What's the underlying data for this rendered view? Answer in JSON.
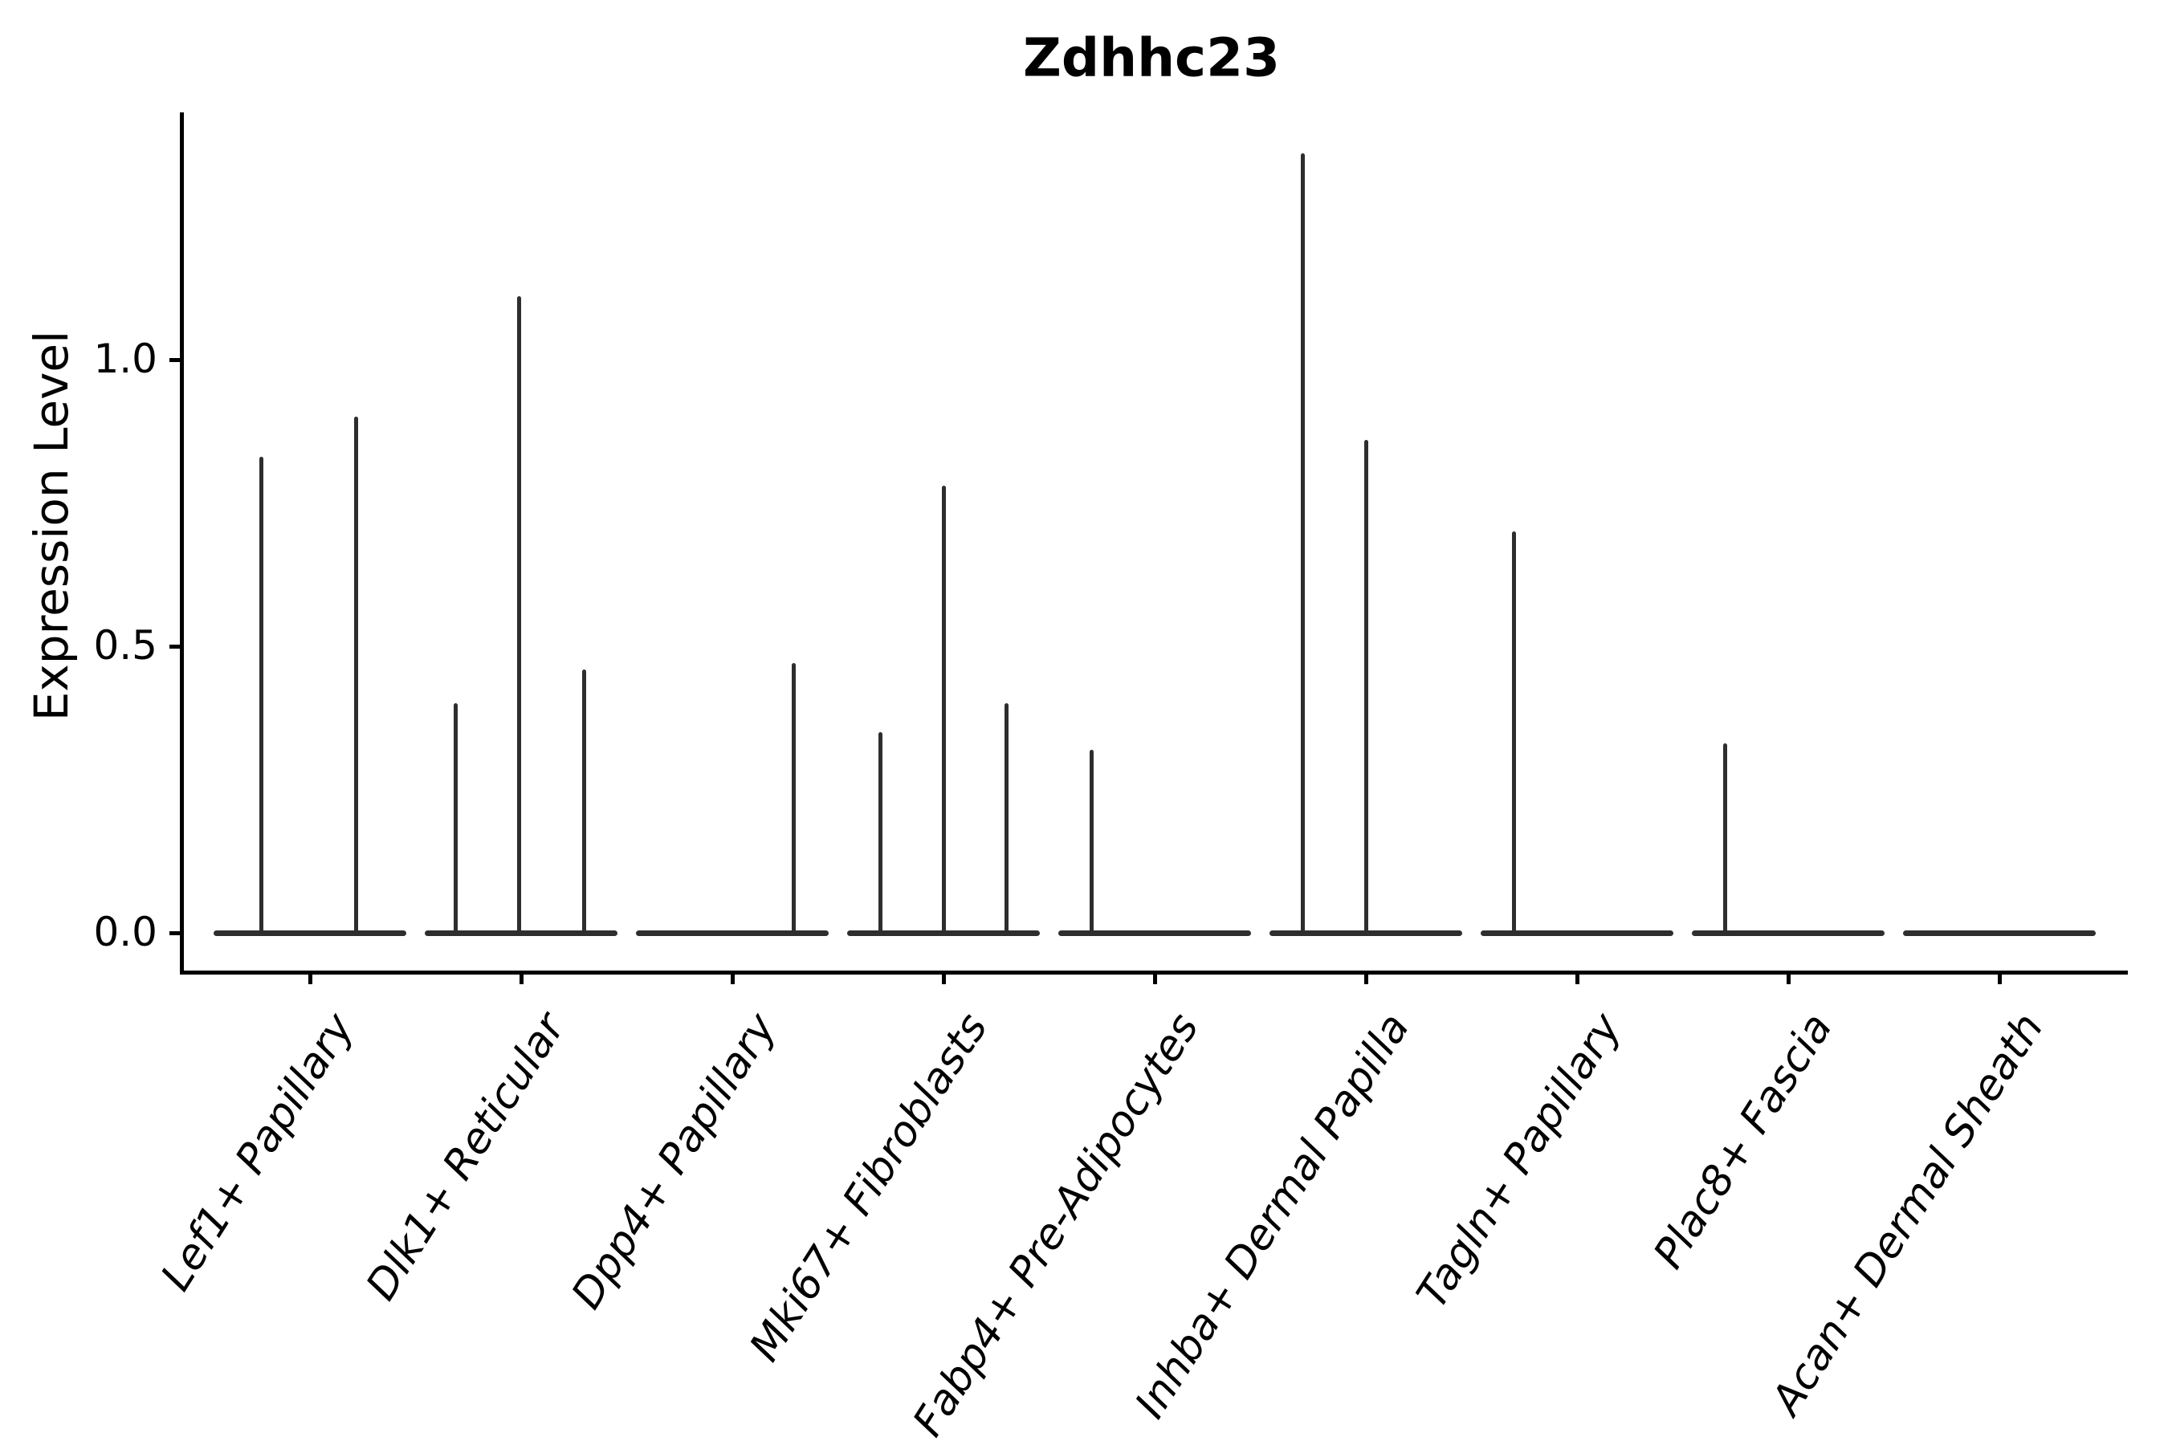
{
  "title": "Zdhhc23",
  "y_axis": {
    "label": "Expression Level",
    "tick_labels": [
      "0.0",
      "0.5",
      "1.0"
    ]
  },
  "x_axis": {
    "tick_labels": [
      "Lef1+ Papillary",
      "Dlk1+ Reticular",
      "Dpp4+ Papillary",
      "Mki67+ Fibroblasts",
      "Fabp4+ Pre-Adipocytes",
      "Inhba+ Dermal Papilla",
      "Tagln+ Papillary",
      "Plac8+ Fascia",
      "Acan+ Dermal Sheath"
    ]
  },
  "colors": {
    "violin": "#2e2e2e",
    "axis": "#000000",
    "text": "#000000",
    "background": "#ffffff"
  },
  "chart_data": {
    "type": "violin",
    "title": "Zdhhc23",
    "xlabel": "",
    "ylabel": "Expression Level",
    "ylim": [
      0,
      1.43
    ],
    "yticks": [
      0.0,
      0.5,
      1.0
    ],
    "grid": false,
    "legend_position": "none",
    "categories": [
      "Lef1+ Papillary",
      "Dlk1+ Reticular",
      "Dpp4+ Papillary",
      "Mki67+ Fibroblasts",
      "Fabp4+ Pre-Adipocytes",
      "Inhba+ Dermal Papilla",
      "Tagln+ Papillary",
      "Plac8+ Fascia",
      "Acan+ Dermal Sheath"
    ],
    "series": [
      {
        "category": "Lef1+ Papillary",
        "bulk_at_zero": true,
        "spikes": [
          {
            "value": 0.83,
            "offset_frac": -0.23
          },
          {
            "value": 0.9,
            "offset_frac": 0.22
          }
        ]
      },
      {
        "category": "Dlk1+ Reticular",
        "bulk_at_zero": true,
        "spikes": [
          {
            "value": 0.4,
            "offset_frac": -0.31
          },
          {
            "value": 1.11,
            "offset_frac": -0.01
          },
          {
            "value": 0.46,
            "offset_frac": 0.3
          }
        ]
      },
      {
        "category": "Dpp4+ Papillary",
        "bulk_at_zero": true,
        "spikes": [
          {
            "value": 0.47,
            "offset_frac": 0.29
          }
        ]
      },
      {
        "category": "Mki67+ Fibroblasts",
        "bulk_at_zero": true,
        "spikes": [
          {
            "value": 0.35,
            "offset_frac": -0.3
          },
          {
            "value": 0.78,
            "offset_frac": 0.0
          },
          {
            "value": 0.4,
            "offset_frac": 0.3
          }
        ]
      },
      {
        "category": "Fabp4+ Pre-Adipocytes",
        "bulk_at_zero": true,
        "spikes": [
          {
            "value": 0.32,
            "offset_frac": -0.3
          }
        ]
      },
      {
        "category": "Inhba+ Dermal Papilla",
        "bulk_at_zero": true,
        "spikes": [
          {
            "value": 1.36,
            "offset_frac": -0.3
          },
          {
            "value": 0.86,
            "offset_frac": 0.0
          }
        ]
      },
      {
        "category": "Tagln+ Papillary",
        "bulk_at_zero": true,
        "spikes": [
          {
            "value": 0.7,
            "offset_frac": -0.3
          }
        ]
      },
      {
        "category": "Plac8+ Fascia",
        "bulk_at_zero": true,
        "spikes": [
          {
            "value": 0.33,
            "offset_frac": -0.3
          }
        ]
      },
      {
        "category": "Acan+ Dermal Sheath",
        "bulk_at_zero": true,
        "spikes": []
      }
    ]
  }
}
